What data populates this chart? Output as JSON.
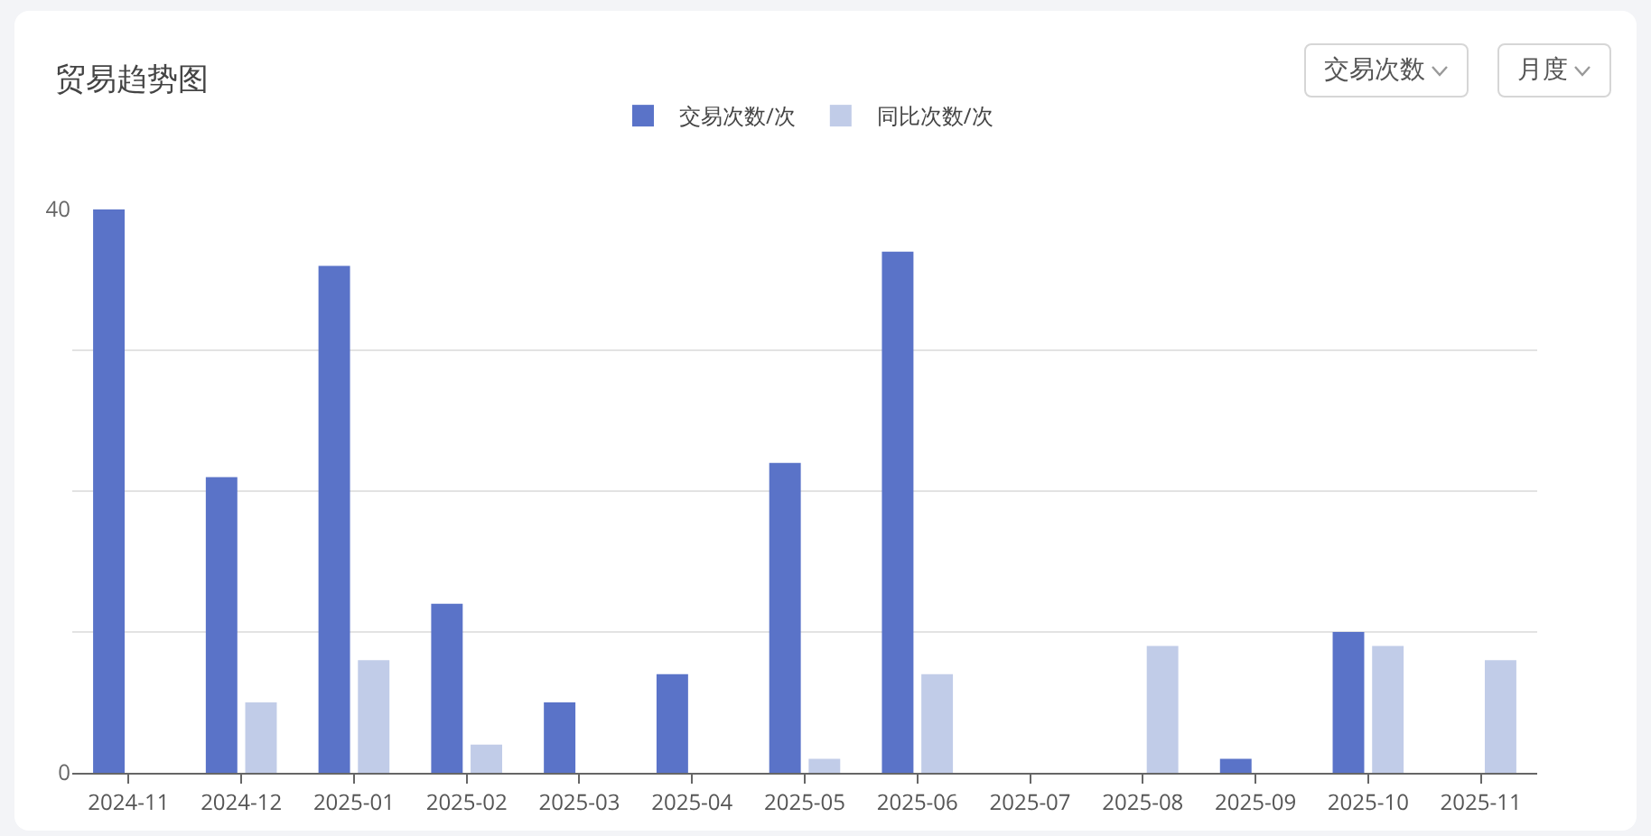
{
  "chart_data": {
    "type": "bar",
    "title": "贸易趋势图",
    "categories": [
      "2024-11",
      "2024-12",
      "2025-01",
      "2025-02",
      "2025-03",
      "2025-04",
      "2025-05",
      "2025-06",
      "2025-07",
      "2025-08",
      "2025-09",
      "2025-10",
      "2025-11"
    ],
    "series": [
      {
        "name": "交易次数/次",
        "color": "#5a73c8",
        "values": [
          40,
          21,
          36,
          12,
          5,
          7,
          22,
          37,
          0,
          0,
          1,
          10,
          0
        ]
      },
      {
        "name": "同比次数/次",
        "color": "#c1cce8",
        "values": [
          0,
          5,
          8,
          2,
          0,
          0,
          1,
          7,
          0,
          9,
          0,
          9,
          8
        ]
      }
    ],
    "ylim": [
      0,
      40
    ],
    "yticks": [
      0,
      {
        "value": 10,
        "label": null
      },
      {
        "value": 20,
        "label": null
      },
      {
        "value": 30,
        "label": null
      },
      40
    ],
    "grid": "y",
    "legend": "top",
    "annotations": [
      "交易次数",
      "月度"
    ]
  }
}
